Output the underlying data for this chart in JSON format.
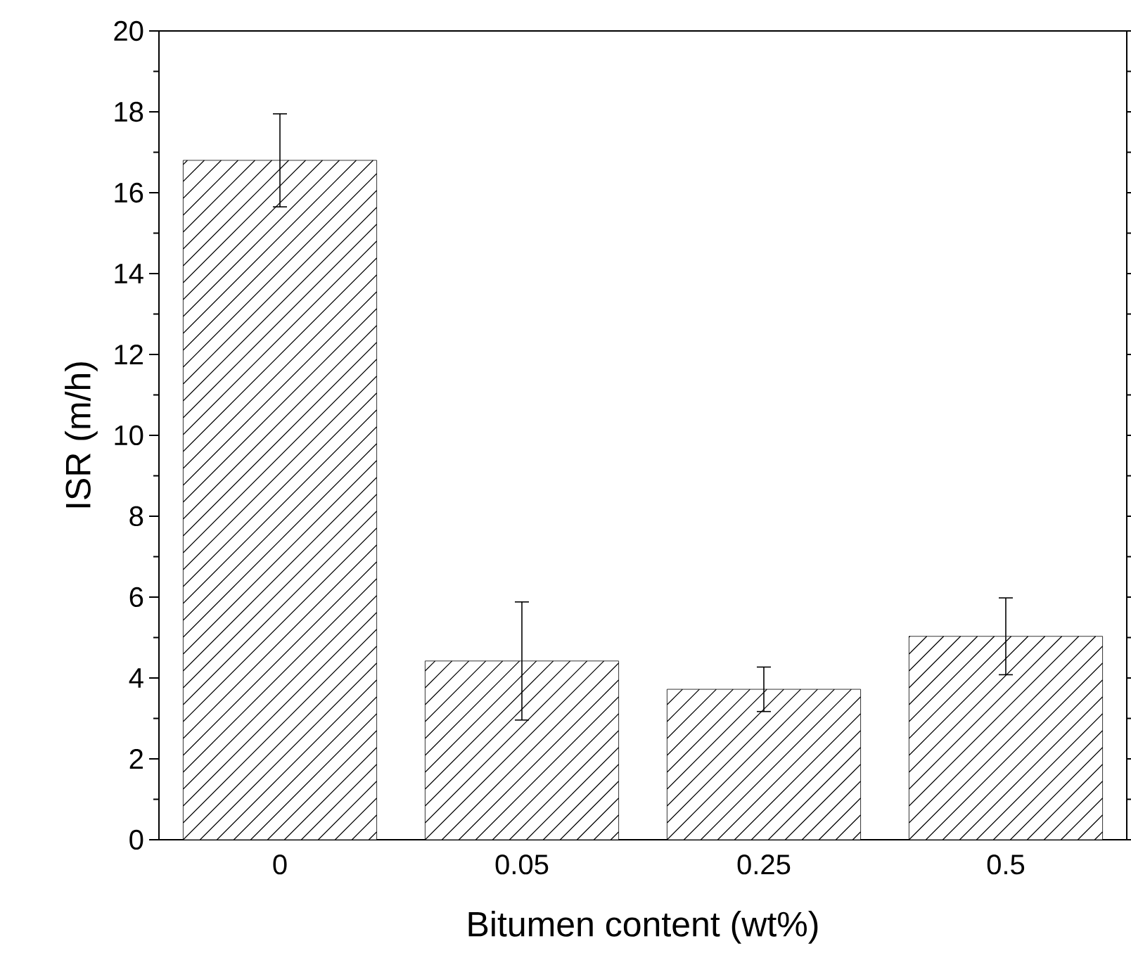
{
  "chart_data": {
    "type": "bar",
    "xlabel": "Bitumen content (wt%)",
    "ylabel": "ISR (m/h)",
    "categories": [
      "0",
      "0.05",
      "0.25",
      "0.5"
    ],
    "values": [
      16.8,
      4.42,
      3.72,
      5.03
    ],
    "errors": [
      1.15,
      1.46,
      0.55,
      0.95
    ],
    "color": "#000000",
    "ylim": [
      0,
      20
    ],
    "yticks": [
      0,
      2,
      4,
      6,
      8,
      10,
      12,
      14,
      16,
      18,
      20
    ]
  }
}
